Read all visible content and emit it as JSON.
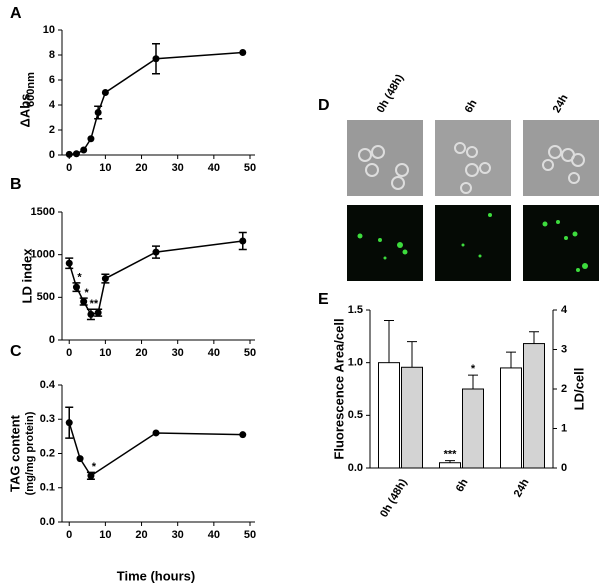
{
  "chart_data": [
    {
      "type": "line",
      "title": "A",
      "ylabel": [
        "ΔAbs",
        "600nm"
      ],
      "x": [
        0,
        2,
        4,
        6,
        8,
        10,
        24,
        48
      ],
      "values": [
        0.05,
        0.1,
        0.4,
        1.3,
        3.4,
        5.0,
        7.7,
        8.2
      ],
      "errors": [
        null,
        null,
        null,
        null,
        0.5,
        null,
        1.2,
        null
      ],
      "color": "#000000",
      "xlim": [
        -2,
        50
      ],
      "xticks": [
        0,
        10,
        20,
        30,
        40,
        50
      ],
      "ylim": [
        0,
        10
      ],
      "yticks": [
        0,
        2,
        4,
        6,
        8,
        10
      ]
    },
    {
      "type": "line",
      "title": "B",
      "ylabel": [
        "LD index"
      ],
      "x": [
        0,
        2,
        4,
        6,
        8,
        10,
        24,
        48
      ],
      "values": [
        900,
        620,
        450,
        300,
        320,
        720,
        1030,
        1160
      ],
      "errors": [
        60,
        50,
        40,
        60,
        40,
        50,
        70,
        100
      ],
      "point_labels": [
        null,
        "*",
        "*",
        "**",
        null,
        null,
        null,
        null
      ],
      "color": "#000000",
      "xlim": [
        -2,
        50
      ],
      "xticks": [
        0,
        10,
        20,
        30,
        40,
        50
      ],
      "ylim": [
        0,
        1500
      ],
      "yticks": [
        0,
        500,
        1000,
        1500
      ]
    },
    {
      "type": "line",
      "title": "C",
      "ylabel": [
        "TAG content",
        "(mg/mg protein)"
      ],
      "xlabel": "Time (hours)",
      "x": [
        0,
        3,
        6,
        24,
        48
      ],
      "values": [
        0.29,
        0.185,
        0.135,
        0.26,
        0.255
      ],
      "errors": [
        0.045,
        null,
        0.01,
        null,
        null
      ],
      "point_labels": [
        null,
        null,
        "*",
        null,
        null
      ],
      "color": "#000000",
      "xlim": [
        -2,
        50
      ],
      "xticks": [
        0,
        10,
        20,
        30,
        40,
        50
      ],
      "ylim": [
        0,
        0.4
      ],
      "yticks": [
        {
          "value": 0,
          "label": "0.0"
        },
        0.1,
        0.2,
        0.3,
        0.4
      ]
    },
    {
      "type": "bar",
      "title": "E",
      "ylabel": [
        "Fluorescence Area/cell"
      ],
      "y2label": "LD/cell",
      "categories": [
        "0h (48h)",
        "6h",
        "24h"
      ],
      "series": [
        {
          "color": "#ffffff",
          "values": [
            1.0,
            0.05,
            0.95
          ],
          "errors": [
            0.4,
            0.02,
            0.15
          ],
          "point_labels": [
            null,
            "***",
            null
          ]
        },
        {
          "color": "#d3d3d3",
          "axis": "y2",
          "values": [
            2.55,
            2.0,
            3.15
          ],
          "errors": [
            0.65,
            0.35,
            0.3
          ],
          "point_labels": [
            null,
            "*",
            null
          ]
        }
      ],
      "ylim": [
        0,
        1.5
      ],
      "yticks": [
        {
          "value": 0,
          "label": "0.0"
        },
        0.5,
        {
          "value": 1,
          "label": "1.0"
        },
        1.5
      ],
      "y2lim": [
        0,
        4
      ],
      "y2ticks": [
        0,
        1,
        2,
        3,
        4
      ]
    }
  ],
  "micrograph": {
    "label": "D",
    "columns": [
      "0h (48h)",
      "6h",
      "24h"
    ]
  }
}
